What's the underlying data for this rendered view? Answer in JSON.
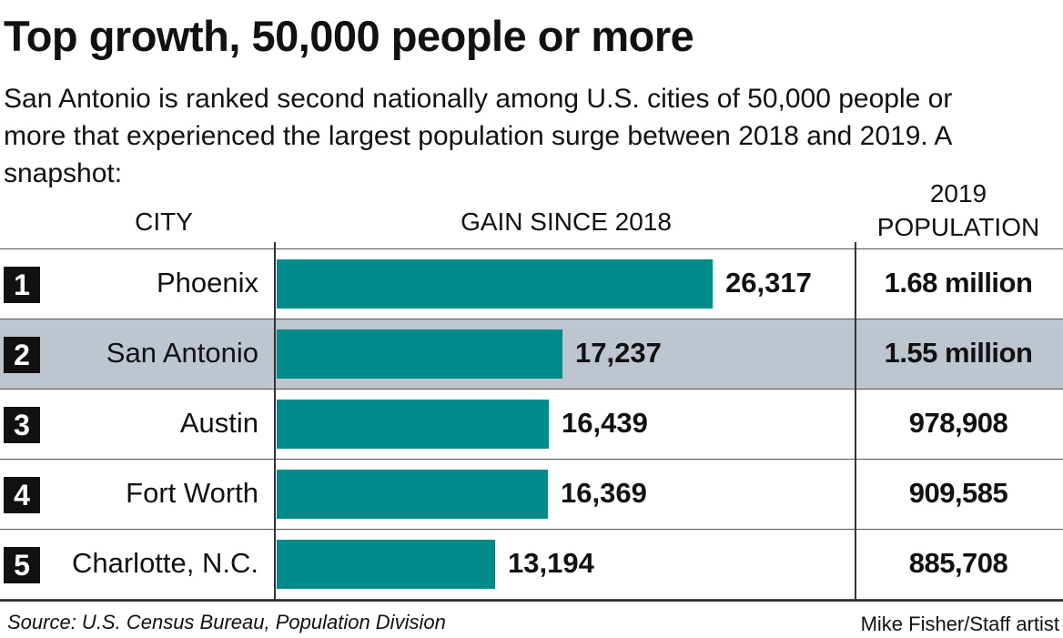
{
  "header": {
    "title": "Top growth, 50,000 people or more",
    "subtitle": "San Antonio is ranked second nationally among U.S. cities of 50,000 people or more that experienced the largest population surge between 2018 and 2019. A snapshot:"
  },
  "columns": {
    "city": "CITY",
    "gain": "GAIN SINCE 2018",
    "population_line1": "2019",
    "population_line2": "POPULATION"
  },
  "chart_data": {
    "type": "bar",
    "orientation": "horizontal",
    "title": "Top growth, 50,000 people or more",
    "categories": [
      "Phoenix",
      "San Antonio",
      "Austin",
      "Fort Worth",
      "Charlotte, N.C."
    ],
    "values": [
      26317,
      17237,
      16439,
      16369,
      13194
    ],
    "xlim": [
      0,
      35000
    ],
    "grid": false,
    "rows": [
      {
        "rank": "1",
        "city": "Phoenix",
        "gain": 26317,
        "gain_label": "26,317",
        "population": "1.68 million",
        "highlight": false
      },
      {
        "rank": "2",
        "city": "San Antonio",
        "gain": 17237,
        "gain_label": "17,237",
        "population": "1.55 million",
        "highlight": true
      },
      {
        "rank": "3",
        "city": "Austin",
        "gain": 16439,
        "gain_label": "16,439",
        "population": "978,908",
        "highlight": false
      },
      {
        "rank": "4",
        "city": "Fort Worth",
        "gain": 16369,
        "gain_label": "16,369",
        "population": "909,585",
        "highlight": false
      },
      {
        "rank": "5",
        "city": "Charlotte, N.C.",
        "gain": 13194,
        "gain_label": "13,194",
        "population": "885,708",
        "highlight": false
      }
    ],
    "colors": {
      "bar": "#008b8b",
      "highlight_row": "#bdc6cf",
      "rank_box": "#111111"
    }
  },
  "footer": {
    "source": "Source: U.S. Census Bureau, Population Division",
    "credit": "Mike Fisher/Staff artist"
  }
}
